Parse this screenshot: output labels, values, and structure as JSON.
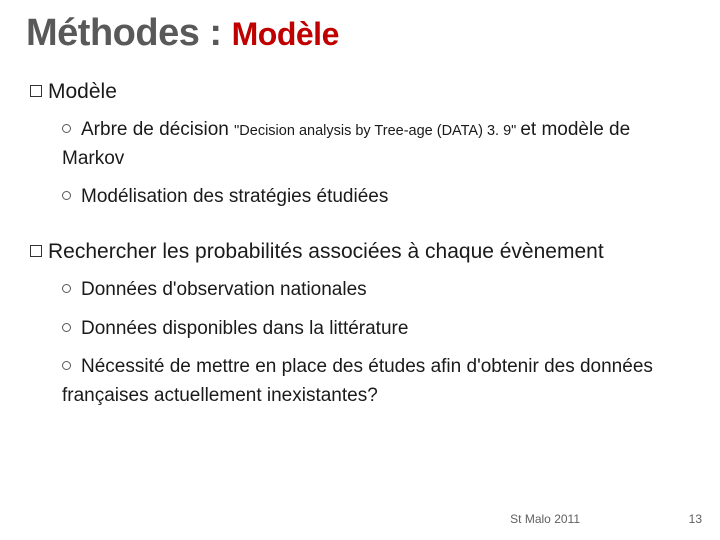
{
  "title": {
    "part1": "Méthodes : ",
    "part2": "Modèle",
    "part1_color": "#595959",
    "part2_color": "#c00000",
    "part1_fontsize": 38,
    "part2_fontsize": 32
  },
  "body": {
    "h1": "Modèle",
    "h1_sub": [
      {
        "prefix": "Arbre de décision ",
        "small": "\"Decision analysis by Tree-age (DATA) 3. 9\" ",
        "suffix": "et modèle de Markov"
      },
      {
        "prefix": "Modélisation des stratégies étudiées",
        "small": "",
        "suffix": ""
      }
    ],
    "h2": "Rechercher les probabilités associées à chaque évènement",
    "h2_sub": [
      "Données d'observation nationales",
      "Données disponibles dans la littérature",
      "Nécessité de mettre en place des études afin d'obtenir des données françaises actuellement inexistantes?"
    ]
  },
  "footer": {
    "venue": "St Malo 2011",
    "page": "13"
  },
  "style": {
    "background": "#ffffff",
    "bullet_square_border": "#333333",
    "bullet_ring_border": "#555555",
    "text_color": "#1a1a1a",
    "footer_color": "#606060",
    "lvl1_fontsize": 21,
    "lvl2_fontsize": 19,
    "small_fontsize": 14.5,
    "footer_fontsize": 12
  }
}
